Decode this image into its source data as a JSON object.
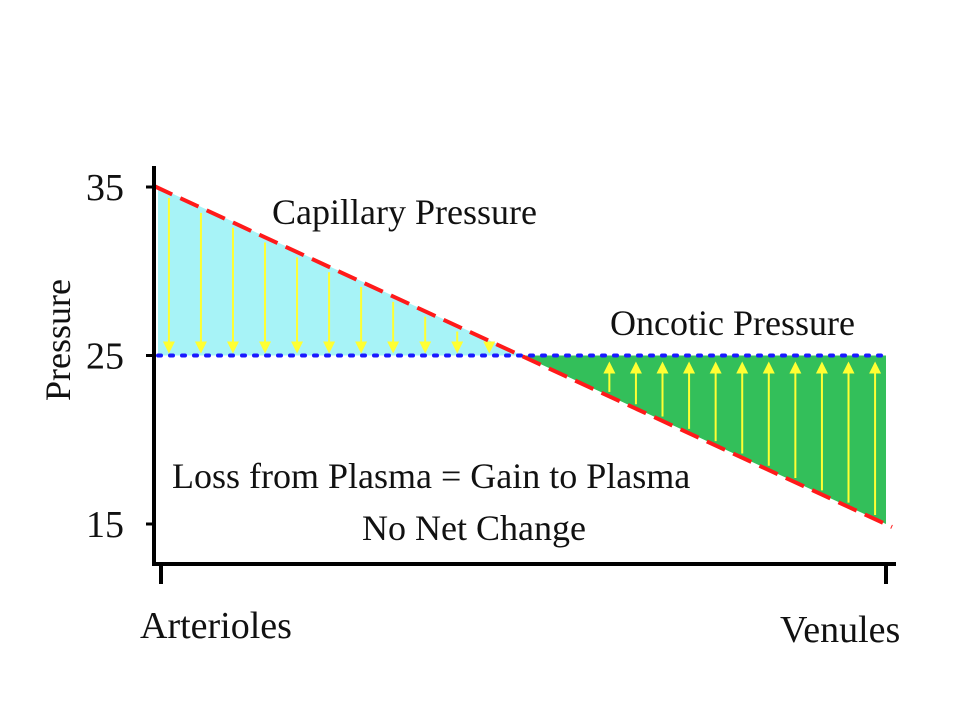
{
  "chart_data": {
    "type": "area",
    "ylabel": "Pressure",
    "xlabel": "",
    "ylim": [
      15,
      35
    ],
    "yticks": [
      "35",
      "25",
      "15"
    ],
    "ytick_values": [
      35,
      25,
      15
    ],
    "x_categories": [
      "Arterioles",
      "Venules"
    ],
    "series": [
      {
        "name": "Capillary Pressure",
        "x": [
          0,
          1
        ],
        "values": [
          35,
          15
        ],
        "style": "dashed",
        "color": "#ff1a1a"
      },
      {
        "name": "Oncotic Pressure",
        "x": [
          0,
          1
        ],
        "values": [
          25,
          25
        ],
        "style": "dotted",
        "color": "#1a1aff"
      }
    ],
    "regions": [
      {
        "fill": "#a7f3f7",
        "meaning": "filtration",
        "arrow_direction": "down",
        "arrow_count": 11
      },
      {
        "fill": "#33bf5a",
        "meaning": "reabsorption",
        "arrow_direction": "up",
        "arrow_count": 11
      }
    ],
    "arrow_color": "#ffff33",
    "annotations": [
      "Loss from Plasma = Gain to Plasma",
      "No Net Change"
    ],
    "grid": false,
    "legend": "none"
  }
}
